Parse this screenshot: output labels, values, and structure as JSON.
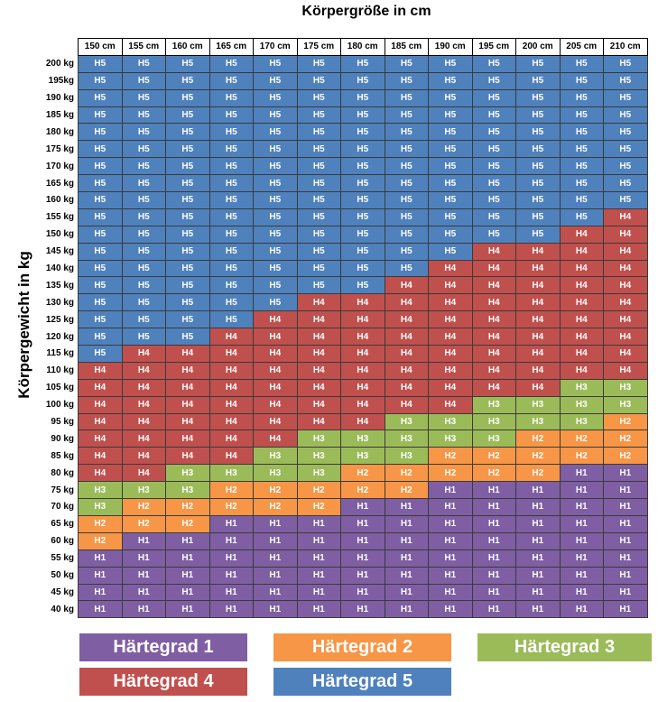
{
  "chart_data": {
    "type": "heatmap",
    "title": "Körpergröße in cm",
    "xlabel": "Körpergröße in cm",
    "ylabel": "Körpergewicht in kg",
    "x": [
      "150 cm",
      "155 cm",
      "160 cm",
      "165 cm",
      "170 cm",
      "175 cm",
      "180 cm",
      "185 cm",
      "190 cm",
      "195 cm",
      "200 cm",
      "205 cm",
      "210 cm"
    ],
    "y": [
      "200 kg",
      "195kg",
      "190 kg",
      "185 kg",
      "180 kg",
      "175 kg",
      "170 kg",
      "165 kg",
      "160 kg",
      "155 kg",
      "150 kg",
      "145 kg",
      "140 kg",
      "135 kg",
      "130 kg",
      "125 kg",
      "120 kg",
      "115 kg",
      "110 kg",
      "105 kg",
      "100 kg",
      "95 kg",
      "90 kg",
      "85 kg",
      "80 kg",
      "75 kg",
      "70 kg",
      "65 kg",
      "60 kg",
      "55 kg",
      "50 kg",
      "45 kg",
      "40 kg"
    ],
    "values": [
      [
        "H5",
        "H5",
        "H5",
        "H5",
        "H5",
        "H5",
        "H5",
        "H5",
        "H5",
        "H5",
        "H5",
        "H5",
        "H5"
      ],
      [
        "H5",
        "H5",
        "H5",
        "H5",
        "H5",
        "H5",
        "H5",
        "H5",
        "H5",
        "H5",
        "H5",
        "H5",
        "H5"
      ],
      [
        "H5",
        "H5",
        "H5",
        "H5",
        "H5",
        "H5",
        "H5",
        "H5",
        "H5",
        "H5",
        "H5",
        "H5",
        "H5"
      ],
      [
        "H5",
        "H5",
        "H5",
        "H5",
        "H5",
        "H5",
        "H5",
        "H5",
        "H5",
        "H5",
        "H5",
        "H5",
        "H5"
      ],
      [
        "H5",
        "H5",
        "H5",
        "H5",
        "H5",
        "H5",
        "H5",
        "H5",
        "H5",
        "H5",
        "H5",
        "H5",
        "H5"
      ],
      [
        "H5",
        "H5",
        "H5",
        "H5",
        "H5",
        "H5",
        "H5",
        "H5",
        "H5",
        "H5",
        "H5",
        "H5",
        "H5"
      ],
      [
        "H5",
        "H5",
        "H5",
        "H5",
        "H5",
        "H5",
        "H5",
        "H5",
        "H5",
        "H5",
        "H5",
        "H5",
        "H5"
      ],
      [
        "H5",
        "H5",
        "H5",
        "H5",
        "H5",
        "H5",
        "H5",
        "H5",
        "H5",
        "H5",
        "H5",
        "H5",
        "H5"
      ],
      [
        "H5",
        "H5",
        "H5",
        "H5",
        "H5",
        "H5",
        "H5",
        "H5",
        "H5",
        "H5",
        "H5",
        "H5",
        "H5"
      ],
      [
        "H5",
        "H5",
        "H5",
        "H5",
        "H5",
        "H5",
        "H5",
        "H5",
        "H5",
        "H5",
        "H5",
        "H5",
        "H4"
      ],
      [
        "H5",
        "H5",
        "H5",
        "H5",
        "H5",
        "H5",
        "H5",
        "H5",
        "H5",
        "H5",
        "H5",
        "H4",
        "H4"
      ],
      [
        "H5",
        "H5",
        "H5",
        "H5",
        "H5",
        "H5",
        "H5",
        "H5",
        "H5",
        "H4",
        "H4",
        "H4",
        "H4"
      ],
      [
        "H5",
        "H5",
        "H5",
        "H5",
        "H5",
        "H5",
        "H5",
        "H5",
        "H4",
        "H4",
        "H4",
        "H4",
        "H4"
      ],
      [
        "H5",
        "H5",
        "H5",
        "H5",
        "H5",
        "H5",
        "H5",
        "H4",
        "H4",
        "H4",
        "H4",
        "H4",
        "H4"
      ],
      [
        "H5",
        "H5",
        "H5",
        "H5",
        "H5",
        "H4",
        "H4",
        "H4",
        "H4",
        "H4",
        "H4",
        "H4",
        "H4"
      ],
      [
        "H5",
        "H5",
        "H5",
        "H5",
        "H4",
        "H4",
        "H4",
        "H4",
        "H4",
        "H4",
        "H4",
        "H4",
        "H4"
      ],
      [
        "H5",
        "H5",
        "H5",
        "H4",
        "H4",
        "H4",
        "H4",
        "H4",
        "H4",
        "H4",
        "H4",
        "H4",
        "H4"
      ],
      [
        "H5",
        "H4",
        "H4",
        "H4",
        "H4",
        "H4",
        "H4",
        "H4",
        "H4",
        "H4",
        "H4",
        "H4",
        "H4"
      ],
      [
        "H4",
        "H4",
        "H4",
        "H4",
        "H4",
        "H4",
        "H4",
        "H4",
        "H4",
        "H4",
        "H4",
        "H4",
        "H4"
      ],
      [
        "H4",
        "H4",
        "H4",
        "H4",
        "H4",
        "H4",
        "H4",
        "H4",
        "H4",
        "H4",
        "H4",
        "H3",
        "H3"
      ],
      [
        "H4",
        "H4",
        "H4",
        "H4",
        "H4",
        "H4",
        "H4",
        "H4",
        "H4",
        "H3",
        "H3",
        "H3",
        "H3"
      ],
      [
        "H4",
        "H4",
        "H4",
        "H4",
        "H4",
        "H4",
        "H4",
        "H3",
        "H3",
        "H3",
        "H3",
        "H3",
        "H2"
      ],
      [
        "H4",
        "H4",
        "H4",
        "H4",
        "H4",
        "H3",
        "H3",
        "H3",
        "H3",
        "H3",
        "H2",
        "H2",
        "H2"
      ],
      [
        "H4",
        "H4",
        "H4",
        "H4",
        "H3",
        "H3",
        "H3",
        "H3",
        "H2",
        "H2",
        "H2",
        "H2",
        "H2"
      ],
      [
        "H4",
        "H4",
        "H3",
        "H3",
        "H3",
        "H3",
        "H2",
        "H2",
        "H2",
        "H2",
        "H2",
        "H1",
        "H1"
      ],
      [
        "H3",
        "H3",
        "H3",
        "H2",
        "H2",
        "H2",
        "H2",
        "H2",
        "H1",
        "H1",
        "H1",
        "H1",
        "H1"
      ],
      [
        "H3",
        "H2",
        "H2",
        "H2",
        "H2",
        "H2",
        "H1",
        "H1",
        "H1",
        "H1",
        "H1",
        "H1",
        "H1"
      ],
      [
        "H2",
        "H2",
        "H2",
        "H1",
        "H1",
        "H1",
        "H1",
        "H1",
        "H1",
        "H1",
        "H1",
        "H1",
        "H1"
      ],
      [
        "H2",
        "H1",
        "H1",
        "H1",
        "H1",
        "H1",
        "H1",
        "H1",
        "H1",
        "H1",
        "H1",
        "H1",
        "H1"
      ],
      [
        "H1",
        "H1",
        "H1",
        "H1",
        "H1",
        "H1",
        "H1",
        "H1",
        "H1",
        "H1",
        "H1",
        "H1",
        "H1"
      ],
      [
        "H1",
        "H1",
        "H1",
        "H1",
        "H1",
        "H1",
        "H1",
        "H1",
        "H1",
        "H1",
        "H1",
        "H1",
        "H1"
      ],
      [
        "H1",
        "H1",
        "H1",
        "H1",
        "H1",
        "H1",
        "H1",
        "H1",
        "H1",
        "H1",
        "H1",
        "H1",
        "H1"
      ],
      [
        "H1",
        "H1",
        "H1",
        "H1",
        "H1",
        "H1",
        "H1",
        "H1",
        "H1",
        "H1",
        "H1",
        "H1",
        "H1"
      ]
    ],
    "colors": {
      "H1": "#7f5ea3",
      "H2": "#f79646",
      "H3": "#9bbb59",
      "H4": "#c0504d",
      "H5": "#4f81bd"
    },
    "legend": [
      {
        "key": "H1",
        "label": "Härtegrad 1"
      },
      {
        "key": "H2",
        "label": "Härtegrad 2"
      },
      {
        "key": "H3",
        "label": "Härtegrad 3"
      },
      {
        "key": "H4",
        "label": "Härtegrad 4"
      },
      {
        "key": "H5",
        "label": "Härtegrad 5"
      }
    ]
  }
}
